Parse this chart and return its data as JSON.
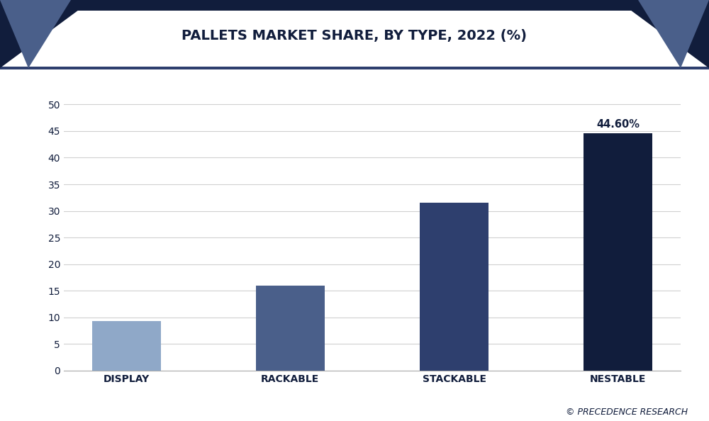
{
  "title": "PALLETS MARKET SHARE, BY TYPE, 2022 (%)",
  "categories": [
    "DISPLAY",
    "RACKABLE",
    "STACKABLE",
    "NESTABLE"
  ],
  "values": [
    9.3,
    16.0,
    31.6,
    44.6
  ],
  "bar_colors": [
    "#8fa8c8",
    "#4a5f8a",
    "#2e3f6e",
    "#111d3c"
  ],
  "annotation_bar_index": 3,
  "annotation_text": "44.60%",
  "ylim": [
    0,
    55
  ],
  "yticks": [
    0,
    5,
    10,
    15,
    20,
    25,
    30,
    35,
    40,
    45,
    50
  ],
  "chart_bg_color": "#ffffff",
  "figure_bg_color": "#ffffff",
  "title_color": "#111d3c",
  "tick_label_color": "#111d3c",
  "grid_color": "#d0d0d0",
  "watermark": "© PRECEDENCE RESEARCH",
  "title_fontsize": 14,
  "tick_fontsize": 10,
  "annotation_fontsize": 10.5,
  "header_bg_color": "#ffffff",
  "header_dark_color": "#111d3c",
  "header_mid_color": "#4a5f8a",
  "border_color": "#2e3f6e"
}
